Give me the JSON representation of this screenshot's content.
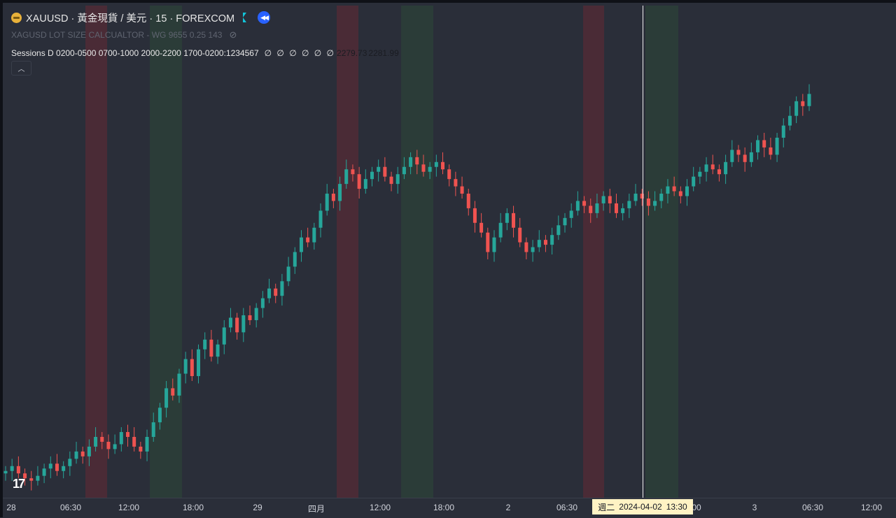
{
  "legend": {
    "symbol_title": "XAUUSD · 黃金現貨 / 美元 · 15 · FOREXCOM",
    "indicator_1": "XAGUSD LOT SIZE CALCUALTOR - WG 9655 0.25 143",
    "sessions_label": "Sessions D 0200-0500 0700-1000 2000-2200 1700-0200:1234567",
    "sessions_values": "∅ ∅ ∅ ∅ ∅ ∅",
    "value_1": "2279.73",
    "value_2": "2281.99"
  },
  "icons": [
    "gold-coin-icon",
    "flag-icon",
    "replay-icon",
    "eye-off-icon",
    "chevron-up-icon",
    "tradingview-logo-icon"
  ],
  "logo_text": "17",
  "xaxis": {
    "ticks": [
      "28",
      "06:30",
      "12:00",
      "18:00",
      "29",
      "四月",
      "12:00",
      "18:00",
      "2",
      "06:30",
      "00",
      "3",
      "06:30",
      "12:00"
    ]
  },
  "crosshair": {
    "day": "週二",
    "date": "2024-04-02",
    "time": "13:30"
  },
  "colors": {
    "background": "#2a2e39",
    "up": "#26a69a",
    "down": "#ef5350",
    "session_red": "#4a2b36",
    "session_green": "#2b3c38",
    "crosshair_label_bg": "#fff3c4"
  },
  "chart_data": {
    "type": "candlestick",
    "symbol": "XAUUSD",
    "timeframe": "15",
    "series": [
      {
        "values": [
          2216,
          2218,
          2215,
          2213,
          2212,
          2214,
          2217,
          2219,
          2216,
          2218,
          2221,
          2224,
          2222,
          2226,
          2230,
          2228,
          2225,
          2227,
          2232,
          2230,
          2226,
          2224,
          2230,
          2236,
          2242,
          2250,
          2247,
          2256,
          2262,
          2255,
          2266,
          2270,
          2263,
          2268,
          2275,
          2279,
          2273,
          2280,
          2278,
          2283,
          2287,
          2291,
          2288,
          2294,
          2300,
          2306,
          2312,
          2310,
          2316,
          2323,
          2330,
          2327,
          2334,
          2340,
          2338,
          2332,
          2336,
          2339,
          2341,
          2337,
          2334,
          2338,
          2341,
          2345,
          2342,
          2339,
          2341,
          2343,
          2340,
          2336,
          2333,
          2330,
          2324,
          2318,
          2314,
          2306,
          2312,
          2318,
          2322,
          2316,
          2310,
          2306,
          2308,
          2311,
          2309,
          2313,
          2317,
          2320,
          2323,
          2327,
          2325,
          2322,
          2326,
          2329,
          2326,
          2322,
          2324,
          2327,
          2330,
          2328,
          2325,
          2327,
          2330,
          2333,
          2331,
          2329,
          2333,
          2337,
          2339,
          2342,
          2340,
          2338,
          2343,
          2348,
          2346,
          2343,
          2347,
          2352,
          2349,
          2346,
          2353,
          2358,
          2362,
          2368,
          2366,
          2371
        ]
      }
    ],
    "sessions": [
      {
        "color": "red"
      },
      {
        "color": "green"
      },
      {
        "color": "red"
      },
      {
        "color": "green"
      },
      {
        "color": "red"
      },
      {
        "color": "green"
      }
    ]
  }
}
